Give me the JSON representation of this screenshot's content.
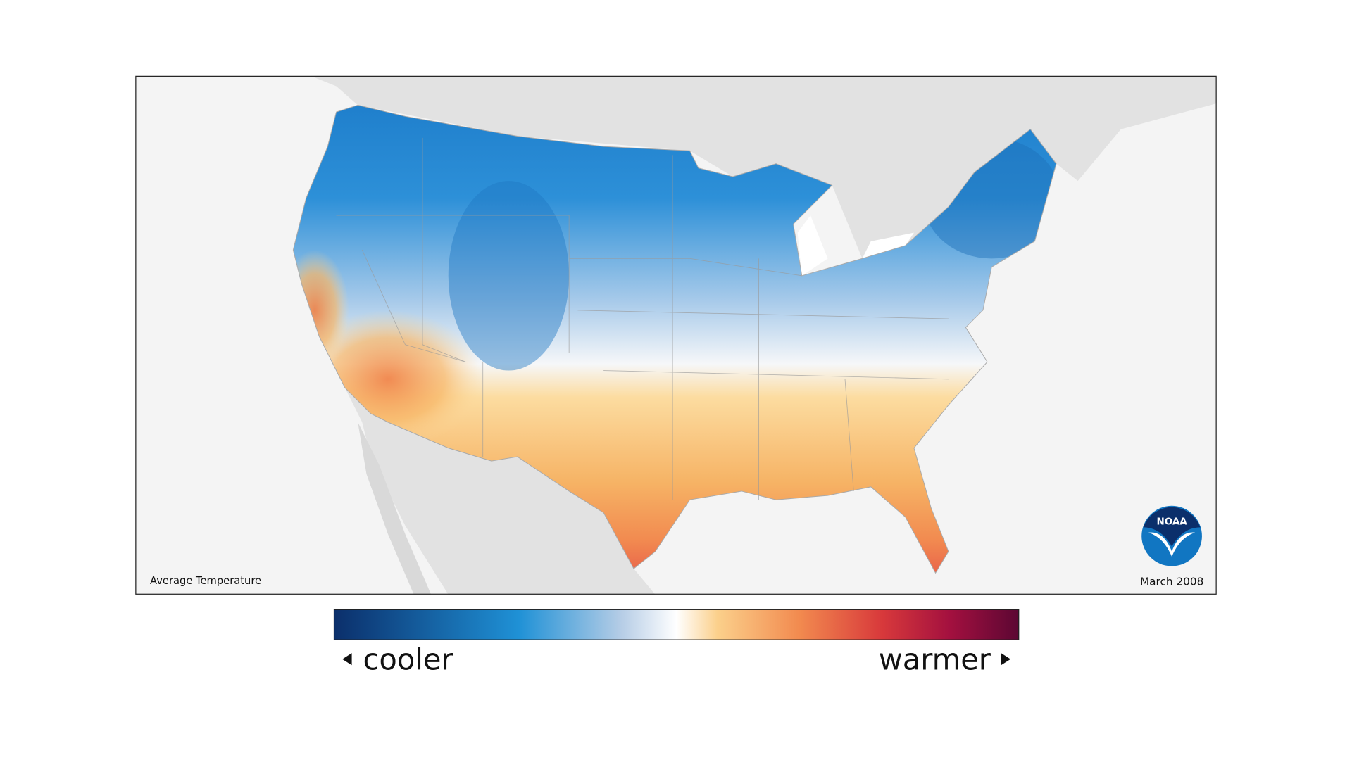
{
  "map": {
    "title": "Average Temperature",
    "date": "March 2008",
    "logo": "NOAA"
  },
  "legend": {
    "low": "cooler",
    "high": "warmer"
  }
}
